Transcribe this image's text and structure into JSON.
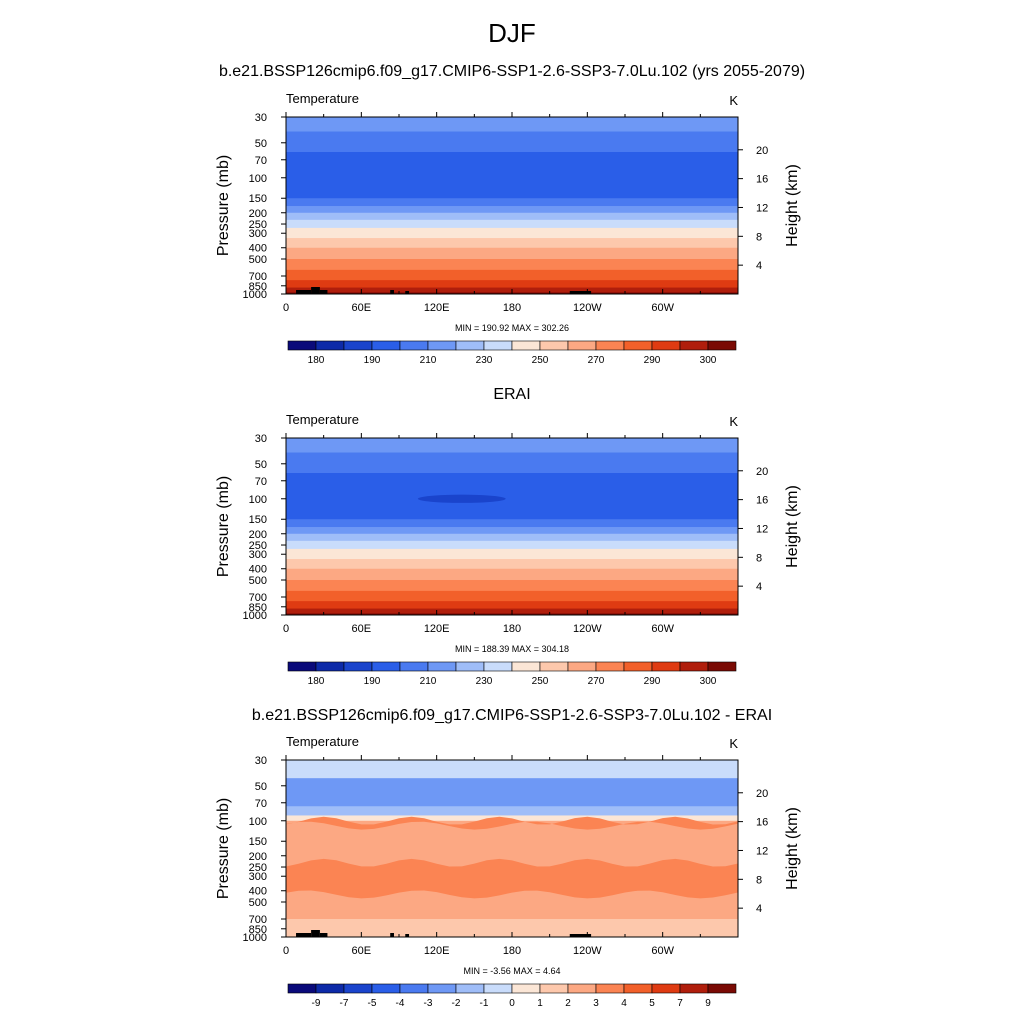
{
  "figure": {
    "title": "DJF"
  },
  "colors": {
    "levels": [
      "#0a0a7a",
      "#0d2aa8",
      "#1a44cc",
      "#2a5ee8",
      "#4a7af0",
      "#6e98f5",
      "#9fbdf8",
      "#c9dcfb",
      "#fbe6d6",
      "#fdc8ac",
      "#fca883",
      "#fb8453",
      "#f2602a",
      "#df3b12",
      "#b01e0c",
      "#7a0a04"
    ],
    "terrain": "#000000"
  },
  "chart_data": [
    {
      "type": "heatmap",
      "title": "b.e21.BSSP126cmip6.f09_g17.CMIP6-SSP1-2.6-SSP3-7.0Lu.102 (yrs 2055-2079)",
      "left_label": "Temperature",
      "units": "K",
      "ylabel": "Pressure (mb)",
      "ylabel_right": "Height (km)",
      "x_ticks": [
        "0",
        "60E",
        "120E",
        "180",
        "120W",
        "60W"
      ],
      "y_ticks": [
        "30",
        "50",
        "70",
        "100",
        "150",
        "200",
        "250",
        "300",
        "400",
        "500",
        "700",
        "850",
        "1000"
      ],
      "right_ticks": [
        "20",
        "16",
        "12",
        "8",
        "4"
      ],
      "stats": "MIN = 190.92  MAX = 302.26",
      "colorbar_labels": [
        "180",
        "190",
        "210",
        "230",
        "250",
        "270",
        "290",
        "300"
      ],
      "profile_levels": [
        {
          "p": 30,
          "level": 5
        },
        {
          "p": 40,
          "level": 4
        },
        {
          "p": 60,
          "level": 3
        },
        {
          "p": 125,
          "level": 3
        },
        {
          "p": 150,
          "level": 4
        },
        {
          "p": 175,
          "level": 5
        },
        {
          "p": 200,
          "level": 6
        },
        {
          "p": 230,
          "level": 7
        },
        {
          "p": 270,
          "level": 8
        },
        {
          "p": 330,
          "level": 9
        },
        {
          "p": 400,
          "level": 10
        },
        {
          "p": 500,
          "level": 11
        },
        {
          "p": 620,
          "level": 12
        },
        {
          "p": 760,
          "level": 13
        },
        {
          "p": 880,
          "level": 14
        },
        {
          "p": 970,
          "level": 15
        }
      ],
      "features": [],
      "terrain": true
    },
    {
      "type": "heatmap",
      "title": "ERAI",
      "left_label": "Temperature",
      "units": "K",
      "ylabel": "Pressure (mb)",
      "ylabel_right": "Height (km)",
      "x_ticks": [
        "0",
        "60E",
        "120E",
        "180",
        "120W",
        "60W"
      ],
      "y_ticks": [
        "30",
        "50",
        "70",
        "100",
        "150",
        "200",
        "250",
        "300",
        "400",
        "500",
        "700",
        "850",
        "1000"
      ],
      "right_ticks": [
        "20",
        "16",
        "12",
        "8",
        "4"
      ],
      "stats": "MIN = 188.39  MAX = 304.18",
      "colorbar_labels": [
        "180",
        "190",
        "210",
        "230",
        "250",
        "270",
        "290",
        "300"
      ],
      "profile_levels": [
        {
          "p": 30,
          "level": 5
        },
        {
          "p": 40,
          "level": 4
        },
        {
          "p": 60,
          "level": 3
        },
        {
          "p": 125,
          "level": 3
        },
        {
          "p": 150,
          "level": 4
        },
        {
          "p": 175,
          "level": 5
        },
        {
          "p": 200,
          "level": 6
        },
        {
          "p": 230,
          "level": 7
        },
        {
          "p": 270,
          "level": 8
        },
        {
          "p": 330,
          "level": 9
        },
        {
          "p": 400,
          "level": 10
        },
        {
          "p": 500,
          "level": 11
        },
        {
          "p": 620,
          "level": 12
        },
        {
          "p": 760,
          "level": 13
        },
        {
          "p": 880,
          "level": 14
        },
        {
          "p": 970,
          "level": 15
        }
      ],
      "features": [
        {
          "kind": "blob",
          "level": 2,
          "lon_center": 140,
          "lon_halfwidth": 35,
          "p": 100,
          "thickness": 0.012
        }
      ],
      "terrain": false
    },
    {
      "type": "heatmap",
      "title": "b.e21.BSSP126cmip6.f09_g17.CMIP6-SSP1-2.6-SSP3-7.0Lu.102 - ERAI",
      "left_label": "Temperature",
      "units": "K",
      "ylabel": "Pressure (mb)",
      "ylabel_right": "Height (km)",
      "x_ticks": [
        "0",
        "60E",
        "120E",
        "180",
        "120W",
        "60W"
      ],
      "y_ticks": [
        "30",
        "50",
        "70",
        "100",
        "150",
        "200",
        "250",
        "300",
        "400",
        "500",
        "700",
        "850",
        "1000"
      ],
      "right_ticks": [
        "20",
        "16",
        "12",
        "8",
        "4"
      ],
      "stats": "MIN =  -3.56  MAX =   4.64",
      "colorbar_labels": [
        "-9",
        "-7",
        "-5",
        "-4",
        "-3",
        "-2",
        "-1",
        "0",
        "1",
        "2",
        "3",
        "4",
        "5",
        "7",
        "9"
      ],
      "profile_levels": [
        {
          "p": 30,
          "level": 7
        },
        {
          "p": 43,
          "level": 5
        },
        {
          "p": 75,
          "level": 6
        },
        {
          "p": 90,
          "level": 8
        },
        {
          "p": 100,
          "level": 10
        },
        {
          "p": 700,
          "level": 9
        }
      ],
      "features": [
        {
          "kind": "band",
          "level": 11,
          "p_top": 230,
          "p_bottom": 430
        },
        {
          "kind": "band",
          "level": 11,
          "p_top": 100,
          "p_bottom": 110
        }
      ],
      "terrain": true
    }
  ]
}
